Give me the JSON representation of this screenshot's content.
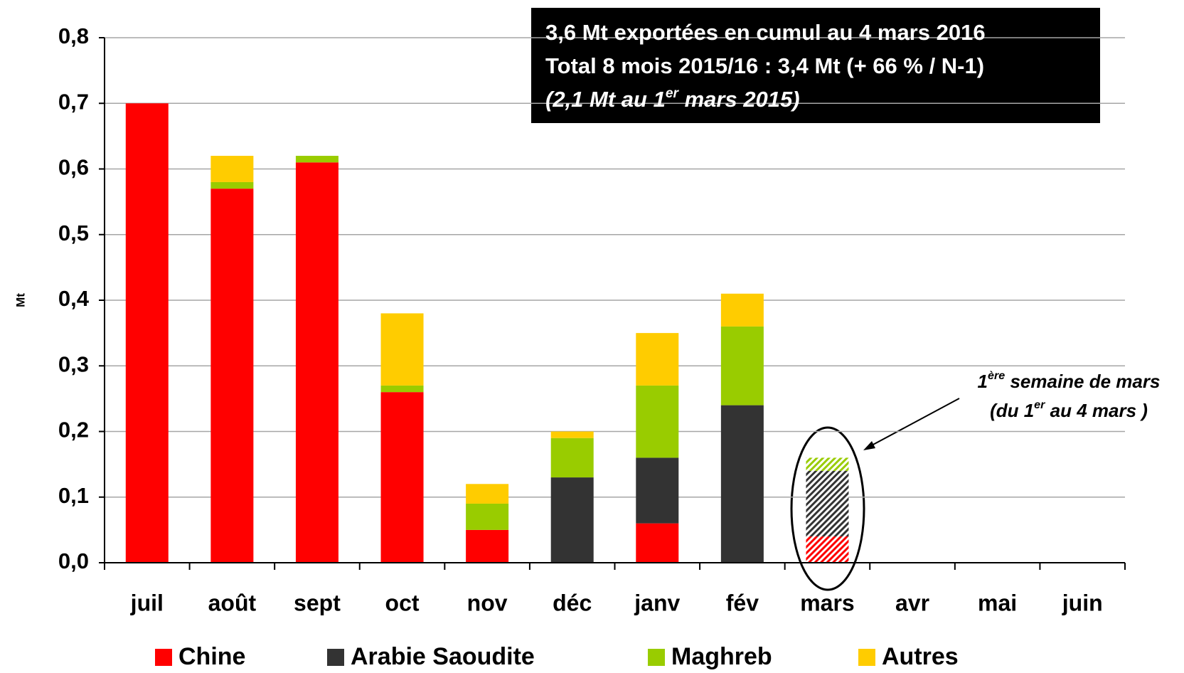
{
  "chart_data": {
    "type": "bar",
    "stacked": true,
    "annotation_box": [
      [
        "3,6 Mt exportées en cumul au 4 mars 2016"
      ],
      [
        "Total 8 mois 2015/16 : 3,4 Mt (+ 66 % / N-1)"
      ],
      [
        "(2,1 Mt au 1",
        "er",
        " mars 2015)"
      ]
    ],
    "annotation": [
      [
        "1",
        "ère",
        " semaine de mars"
      ],
      [
        "(du 1",
        "er",
        " au 4 mars )"
      ]
    ],
    "ylabel": "Mt",
    "categories": [
      "juil",
      "août",
      "sept",
      "oct",
      "nov",
      "déc",
      "janv",
      "fév",
      "mars",
      "avr",
      "mai",
      "juin"
    ],
    "hatched": [
      false,
      false,
      false,
      false,
      false,
      false,
      false,
      false,
      true,
      false,
      false,
      false
    ],
    "series": [
      {
        "name": "Chine",
        "color": "#ff0000",
        "values": [
          0.7,
          0.57,
          0.61,
          0.26,
          0.05,
          0,
          0.06,
          0,
          0.04,
          null,
          null,
          null
        ]
      },
      {
        "name": "Arabie Saoudite",
        "color": "#333333",
        "values": [
          0,
          0,
          0,
          0,
          0,
          0.13,
          0.1,
          0.24,
          0.1,
          null,
          null,
          null
        ]
      },
      {
        "name": "Maghreb",
        "color": "#99cc00",
        "values": [
          0,
          0.01,
          0.01,
          0.01,
          0.04,
          0.06,
          0.11,
          0.12,
          0.02,
          null,
          null,
          null
        ]
      },
      {
        "name": "Autres",
        "color": "#ffcc00",
        "values": [
          0,
          0.04,
          0,
          0.11,
          0.03,
          0.01,
          0.08,
          0.05,
          0,
          null,
          null,
          null
        ]
      }
    ],
    "ylim": [
      0,
      0.8
    ],
    "yticks": [
      {
        "value": 0,
        "label": "0,0"
      },
      {
        "value": 0.1,
        "label": "0,1"
      },
      {
        "value": 0.2,
        "label": "0,2"
      },
      {
        "value": 0.3,
        "label": "0,3"
      },
      {
        "value": 0.4,
        "label": "0,4"
      },
      {
        "value": 0.5,
        "label": "0,5"
      },
      {
        "value": 0.6,
        "label": "0,6"
      },
      {
        "value": 0.7,
        "label": "0,7"
      },
      {
        "value": 0.8,
        "label": "0,8"
      }
    ],
    "grid": true
  }
}
